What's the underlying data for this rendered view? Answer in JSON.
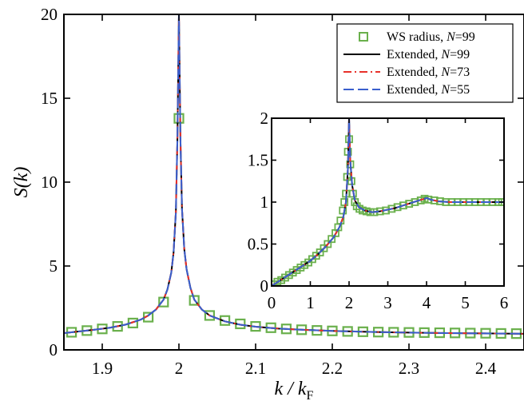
{
  "chart_data": [
    {
      "type": "line",
      "xlabel": "k / k",
      "xlabel_sub": "F",
      "ylabel": "S(k)",
      "xlim": [
        1.85,
        2.45
      ],
      "ylim": [
        0,
        20
      ],
      "xticks": [
        1.9,
        2.0,
        2.1,
        2.2,
        2.3,
        2.4
      ],
      "xtick_labels": [
        "1.9",
        "2",
        "2.1",
        "2.2",
        "2.3",
        "2.4"
      ],
      "yticks": [
        0,
        5,
        10,
        15,
        20
      ],
      "ytick_labels": [
        "0",
        "5",
        "10",
        "15",
        "20"
      ],
      "grid": false,
      "legend_position": "top-right",
      "series": [
        {
          "name": "WS radius, N=99",
          "name_plain": "WS radius, ",
          "name_var": "N",
          "name_val": "=99",
          "style": "markers",
          "marker": "open-square",
          "color": "#6ab04c",
          "x": [
            1.86,
            1.88,
            1.9,
            1.92,
            1.94,
            1.96,
            1.98,
            2.0,
            2.02,
            2.04,
            2.06,
            2.08,
            2.1,
            2.12,
            2.14,
            2.16,
            2.18,
            2.2,
            2.22,
            2.24,
            2.26,
            2.28,
            2.3,
            2.32,
            2.34,
            2.36,
            2.38,
            2.4,
            2.42,
            2.44
          ],
          "y": [
            1.05,
            1.15,
            1.25,
            1.4,
            1.6,
            1.95,
            2.85,
            13.8,
            2.95,
            2.05,
            1.75,
            1.55,
            1.4,
            1.32,
            1.25,
            1.2,
            1.16,
            1.13,
            1.1,
            1.08,
            1.06,
            1.05,
            1.04,
            1.03,
            1.02,
            1.01,
            1.0,
            0.99,
            0.98,
            0.97
          ]
        },
        {
          "name": "Extended, N=99",
          "name_plain": "Extended, ",
          "name_var": "N",
          "name_val": "=99",
          "style": "solid",
          "color": "#000000",
          "x": [
            1.85,
            1.87,
            1.89,
            1.91,
            1.93,
            1.95,
            1.96,
            1.97,
            1.98,
            1.985,
            1.99,
            1.993,
            1.996,
            1.998,
            2.0,
            2.002,
            2.004,
            2.007,
            2.01,
            2.015,
            2.02,
            2.03,
            2.04,
            2.06,
            2.08,
            2.1,
            2.13,
            2.16,
            2.2,
            2.25,
            2.3,
            2.35,
            2.4,
            2.45
          ],
          "y": [
            1.0,
            1.1,
            1.2,
            1.32,
            1.5,
            1.8,
            2.05,
            2.4,
            3.0,
            3.6,
            4.6,
            5.8,
            8.2,
            12.5,
            20.0,
            12.5,
            8.4,
            6.0,
            4.8,
            3.7,
            3.0,
            2.4,
            2.05,
            1.7,
            1.5,
            1.38,
            1.27,
            1.2,
            1.13,
            1.07,
            1.03,
            1.0,
            0.98,
            0.96
          ]
        },
        {
          "name": "Extended, N=73",
          "name_plain": "Extended, ",
          "name_var": "N",
          "name_val": "=73",
          "style": "dash-dot",
          "color": "#e8302a",
          "x": [
            1.85,
            1.87,
            1.89,
            1.91,
            1.93,
            1.95,
            1.96,
            1.97,
            1.98,
            1.985,
            1.99,
            1.993,
            1.996,
            1.998,
            2.0,
            2.002,
            2.004,
            2.007,
            2.01,
            2.015,
            2.02,
            2.03,
            2.04,
            2.06,
            2.08,
            2.1,
            2.13,
            2.16,
            2.2,
            2.25,
            2.3,
            2.35,
            2.4,
            2.45
          ],
          "y": [
            1.0,
            1.1,
            1.2,
            1.32,
            1.5,
            1.8,
            2.05,
            2.4,
            3.0,
            3.6,
            4.6,
            5.8,
            8.2,
            12.5,
            20.0,
            12.5,
            8.4,
            6.0,
            4.8,
            3.7,
            3.0,
            2.4,
            2.05,
            1.7,
            1.5,
            1.38,
            1.27,
            1.2,
            1.13,
            1.07,
            1.03,
            1.0,
            0.98,
            0.96
          ]
        },
        {
          "name": "Extended, N=55",
          "name_plain": "Extended, ",
          "name_var": "N",
          "name_val": "=55",
          "style": "dashed",
          "color": "#3a5fcd",
          "x": [
            1.85,
            1.87,
            1.89,
            1.91,
            1.93,
            1.95,
            1.96,
            1.97,
            1.98,
            1.985,
            1.99,
            1.993,
            1.996,
            1.998,
            2.0,
            2.002,
            2.004,
            2.007,
            2.01,
            2.015,
            2.02,
            2.03,
            2.04,
            2.06,
            2.08,
            2.1,
            2.13,
            2.16,
            2.2,
            2.25,
            2.3,
            2.35,
            2.4,
            2.45
          ],
          "y": [
            1.0,
            1.1,
            1.2,
            1.32,
            1.5,
            1.8,
            2.05,
            2.4,
            3.0,
            3.6,
            4.6,
            5.8,
            8.2,
            12.5,
            20.0,
            12.5,
            8.4,
            6.0,
            4.8,
            3.7,
            3.0,
            2.4,
            2.05,
            1.7,
            1.5,
            1.38,
            1.27,
            1.2,
            1.13,
            1.07,
            1.03,
            1.0,
            0.98,
            0.96
          ]
        }
      ]
    },
    {
      "type": "line",
      "role": "inset",
      "xlim": [
        0,
        6
      ],
      "ylim": [
        0,
        2
      ],
      "xticks": [
        0,
        1,
        2,
        3,
        4,
        5,
        6
      ],
      "xtick_labels": [
        "0",
        "1",
        "2",
        "3",
        "4",
        "5",
        "6"
      ],
      "yticks": [
        0,
        0.5,
        1.0,
        1.5,
        2.0
      ],
      "ytick_labels": [
        "0",
        "0.5",
        "1",
        "1.5",
        "2"
      ],
      "grid": false,
      "series": [
        {
          "name": "WS radius, N=99",
          "style": "markers",
          "marker": "open-square",
          "color": "#6ab04c",
          "x": [
            0.05,
            0.15,
            0.25,
            0.35,
            0.45,
            0.55,
            0.65,
            0.75,
            0.85,
            0.95,
            1.05,
            1.15,
            1.25,
            1.35,
            1.45,
            1.55,
            1.65,
            1.72,
            1.78,
            1.84,
            1.88,
            1.92,
            1.95,
            1.97,
            2.0,
            2.03,
            2.06,
            2.1,
            2.15,
            2.2,
            2.27,
            2.35,
            2.45,
            2.55,
            2.65,
            2.8,
            2.95,
            3.1,
            3.25,
            3.4,
            3.55,
            3.7,
            3.85,
            3.95,
            4.05,
            4.2,
            4.35,
            4.5,
            4.65,
            4.8,
            4.95,
            5.1,
            5.25,
            5.4,
            5.55,
            5.7,
            5.85,
            5.95
          ],
          "y": [
            0.02,
            0.05,
            0.07,
            0.1,
            0.13,
            0.16,
            0.19,
            0.22,
            0.25,
            0.28,
            0.32,
            0.36,
            0.4,
            0.45,
            0.5,
            0.56,
            0.63,
            0.7,
            0.78,
            0.9,
            1.0,
            1.1,
            1.3,
            1.6,
            1.75,
            1.45,
            1.25,
            1.1,
            1.0,
            0.95,
            0.92,
            0.9,
            0.89,
            0.88,
            0.88,
            0.89,
            0.9,
            0.92,
            0.94,
            0.96,
            0.98,
            1.0,
            1.02,
            1.04,
            1.03,
            1.02,
            1.01,
            1.0,
            1.0,
            1.0,
            1.0,
            1.0,
            1.0,
            1.0,
            1.0,
            1.0,
            1.0,
            1.0
          ]
        },
        {
          "name": "Extended, N=99",
          "style": "solid",
          "color": "#000000",
          "x": [
            0.0,
            0.2,
            0.4,
            0.6,
            0.8,
            1.0,
            1.2,
            1.4,
            1.6,
            1.75,
            1.85,
            1.92,
            1.97,
            2.0,
            2.03,
            2.08,
            2.15,
            2.25,
            2.4,
            2.6,
            2.8,
            3.0,
            3.2,
            3.4,
            3.6,
            3.8,
            3.95,
            4.0,
            4.1,
            4.3,
            4.6,
            5.0,
            5.5,
            6.0
          ],
          "y": [
            0.0,
            0.06,
            0.12,
            0.18,
            0.24,
            0.3,
            0.38,
            0.47,
            0.58,
            0.7,
            0.82,
            1.0,
            1.4,
            2.0,
            1.5,
            1.2,
            1.02,
            0.94,
            0.9,
            0.88,
            0.89,
            0.91,
            0.93,
            0.96,
            0.99,
            1.02,
            1.04,
            1.05,
            1.03,
            1.01,
            1.0,
            1.0,
            1.0,
            1.0
          ]
        },
        {
          "name": "Extended, N=73",
          "style": "dash-dot",
          "color": "#e8302a",
          "x": [
            0.0,
            0.2,
            0.4,
            0.6,
            0.8,
            1.0,
            1.2,
            1.4,
            1.6,
            1.75,
            1.85,
            1.92,
            1.97,
            2.0,
            2.03,
            2.08,
            2.15,
            2.25,
            2.4,
            2.6,
            2.8,
            3.0,
            3.2,
            3.4,
            3.6,
            3.8,
            3.95,
            4.0,
            4.1,
            4.3,
            4.6,
            5.0,
            5.5,
            6.0
          ],
          "y": [
            0.0,
            0.06,
            0.12,
            0.18,
            0.24,
            0.3,
            0.38,
            0.47,
            0.58,
            0.7,
            0.82,
            1.0,
            1.4,
            2.0,
            1.5,
            1.2,
            1.02,
            0.94,
            0.9,
            0.88,
            0.89,
            0.91,
            0.93,
            0.96,
            0.99,
            1.02,
            1.04,
            1.05,
            1.03,
            1.01,
            1.0,
            1.0,
            1.0,
            1.0
          ]
        },
        {
          "name": "Extended, N=55",
          "style": "dashed",
          "color": "#3a5fcd",
          "x": [
            0.0,
            0.2,
            0.4,
            0.6,
            0.8,
            1.0,
            1.2,
            1.4,
            1.6,
            1.75,
            1.85,
            1.92,
            1.97,
            2.0,
            2.03,
            2.08,
            2.15,
            2.25,
            2.4,
            2.6,
            2.8,
            3.0,
            3.2,
            3.4,
            3.6,
            3.8,
            3.95,
            4.0,
            4.1,
            4.3,
            4.6,
            5.0,
            5.5,
            6.0
          ],
          "y": [
            0.0,
            0.06,
            0.12,
            0.18,
            0.24,
            0.3,
            0.38,
            0.47,
            0.58,
            0.7,
            0.82,
            1.0,
            1.4,
            2.0,
            1.5,
            1.2,
            1.02,
            0.94,
            0.9,
            0.88,
            0.89,
            0.91,
            0.93,
            0.96,
            0.99,
            1.02,
            1.04,
            1.05,
            1.03,
            1.01,
            1.0,
            1.0,
            1.0,
            1.0
          ]
        }
      ]
    }
  ]
}
